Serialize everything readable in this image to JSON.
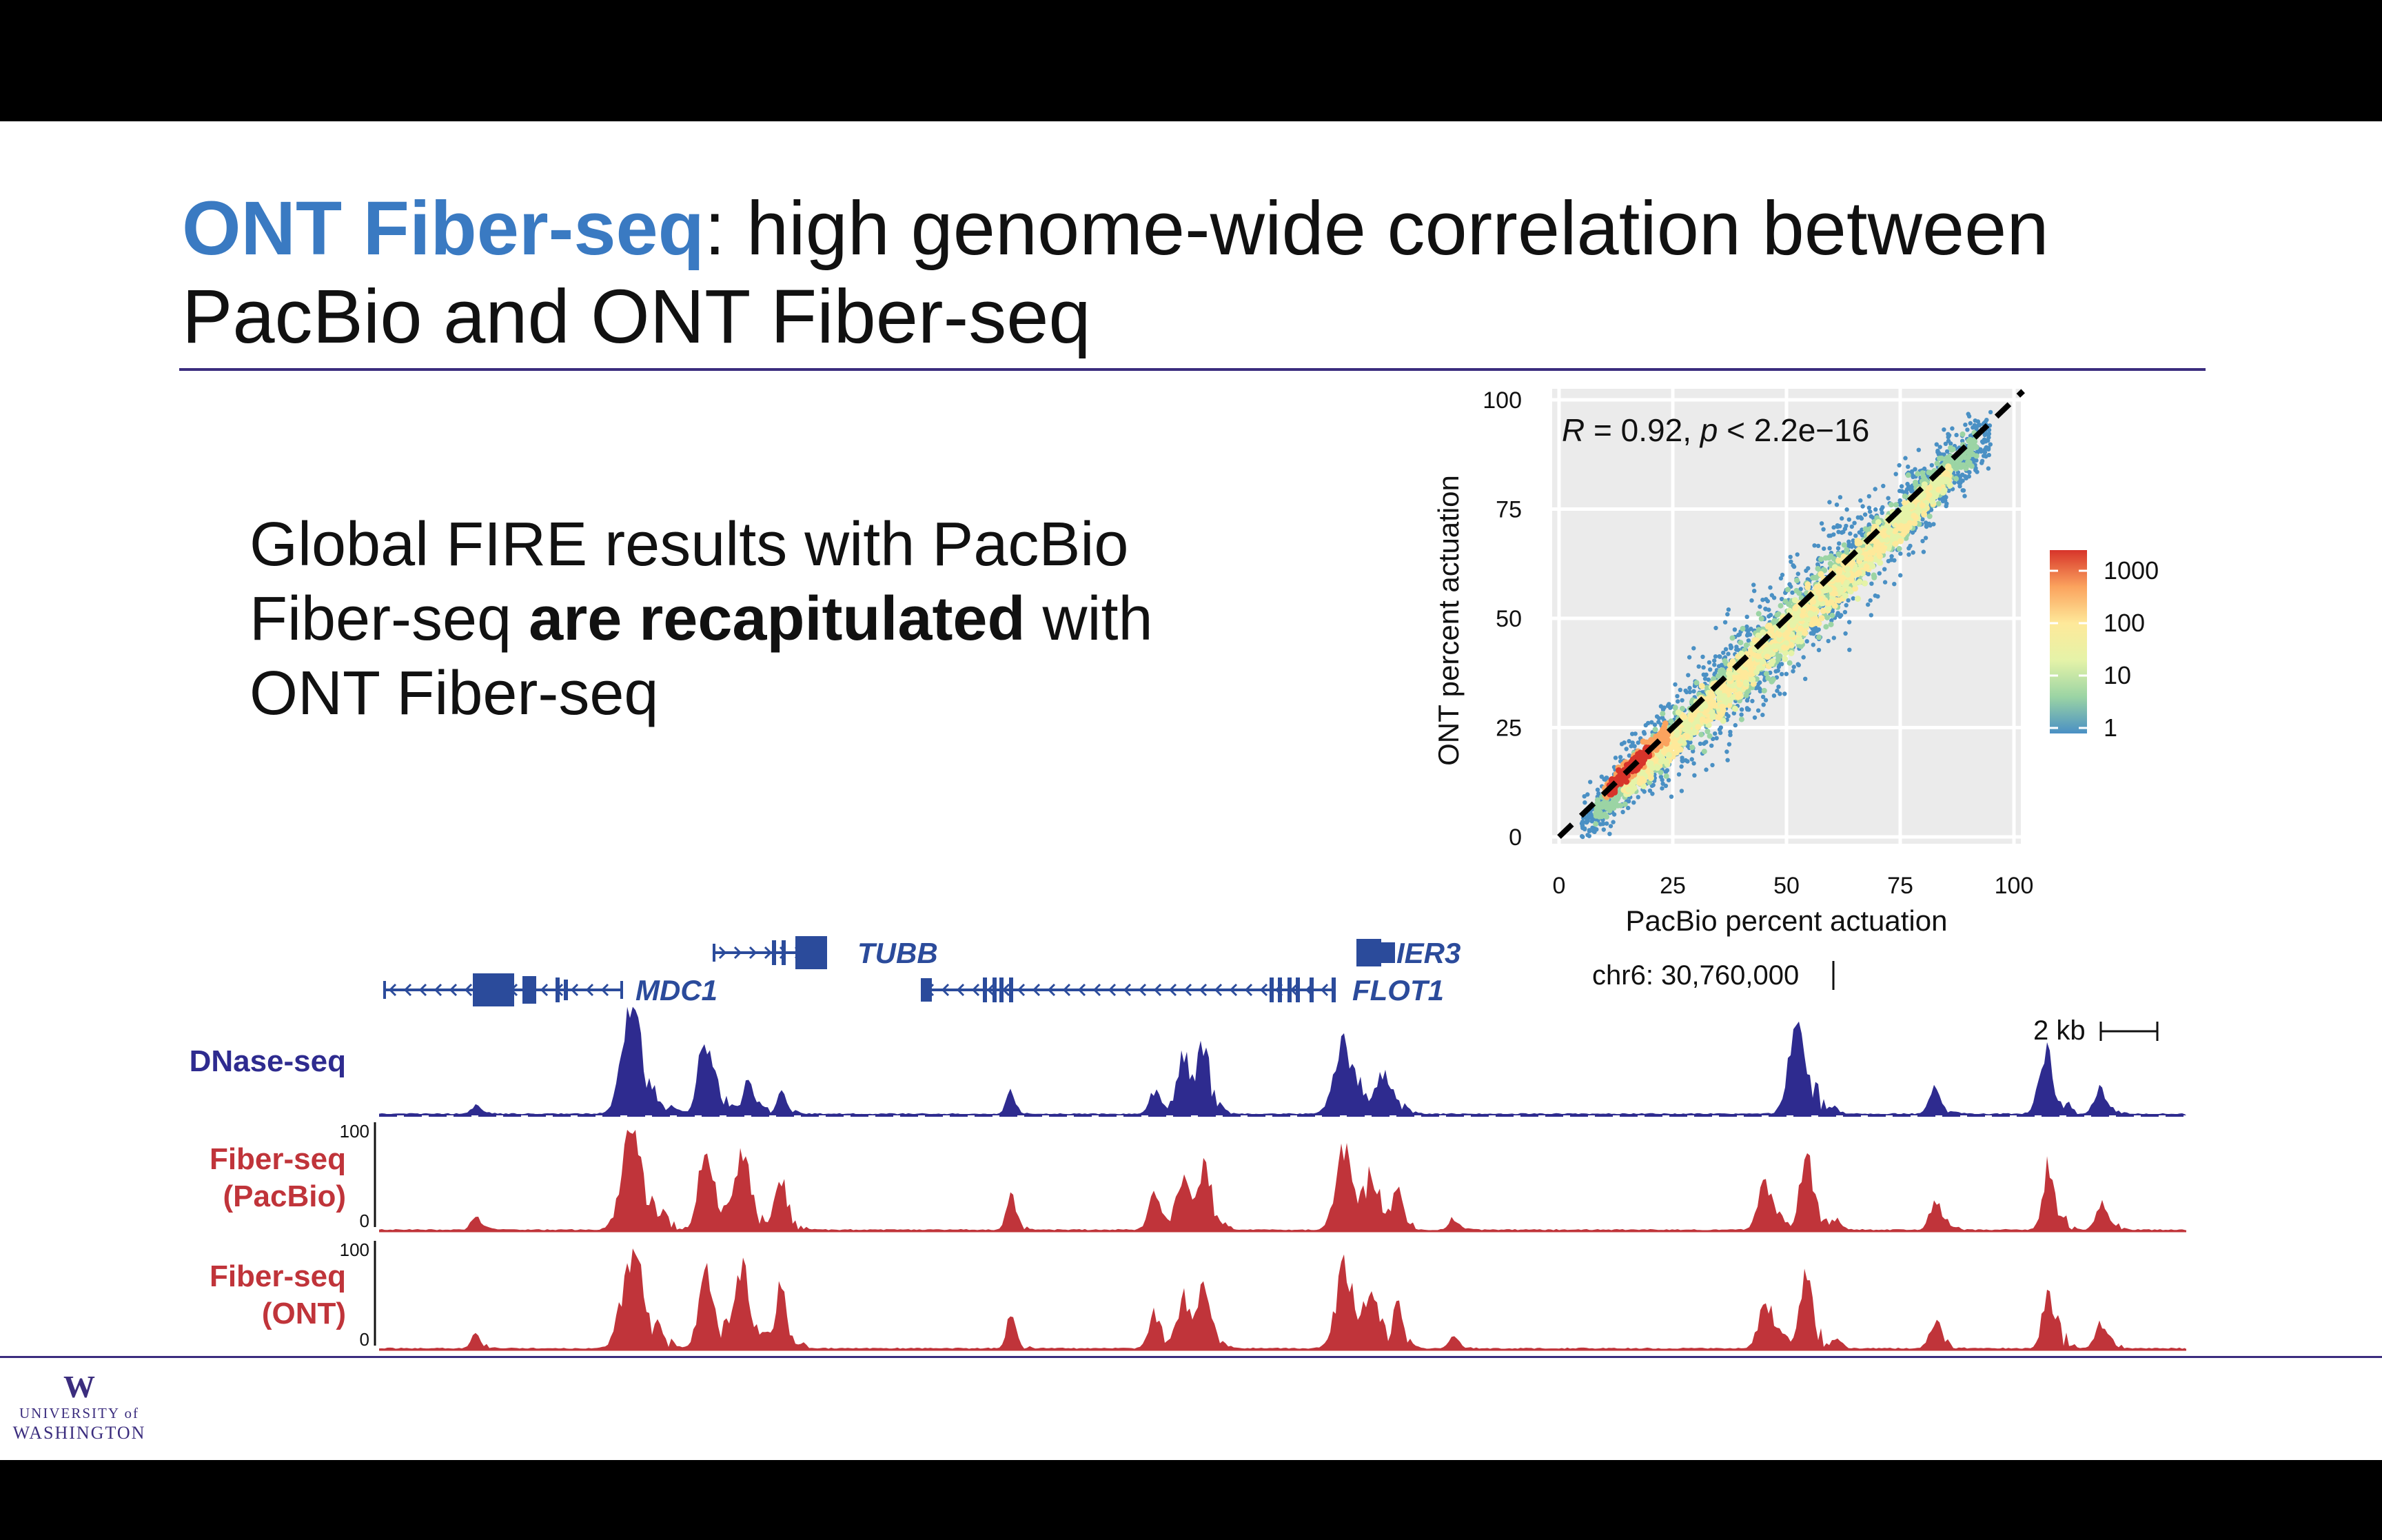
{
  "slide": {
    "title_accent": "ONT Fiber-seq",
    "title_rest": ": high genome-wide correlation between",
    "title_line2": "PacBio and ONT Fiber-seq",
    "body_1": "Global FIRE results with PacBio",
    "body_2a": "Fiber-seq ",
    "body_2b": "are recapitulated",
    "body_2c": " with",
    "body_3": "ONT Fiber-seq"
  },
  "logo": {
    "line1": "UNIVERSITY of",
    "line2": "WASHINGTON"
  },
  "scatter": {
    "stat_R": "R",
    "stat_mid": " = 0.92, ",
    "stat_p": "p",
    "stat_end": " < 2.2e−16",
    "xlabel": "PacBio percent actuation",
    "ylabel": "ONT percent actuation",
    "ticks": [
      "0",
      "25",
      "50",
      "75",
      "100"
    ],
    "colorbar_labels": [
      "1000",
      "100",
      "10",
      "1"
    ],
    "colors": [
      "#d7342a",
      "#fba35e",
      "#fee99a",
      "#e5f3a8",
      "#9bd4a4",
      "#4a90c4"
    ]
  },
  "chart_data": {
    "type": "scatter",
    "title": "",
    "xlabel": "PacBio percent actuation",
    "ylabel": "ONT percent actuation",
    "xlim": [
      0,
      100
    ],
    "ylim": [
      0,
      100
    ],
    "annotation": "R = 0.92, p < 2.2e−16",
    "reference_line": "y = x (dashed)",
    "color_scale": "log count (1, 10, 100, 1000)",
    "grid": true,
    "legend": "right"
  },
  "browser": {
    "genes": [
      {
        "name": "MDC1",
        "strand": "-"
      },
      {
        "name": "TUBB",
        "strand": "+"
      },
      {
        "name": "IER3",
        "strand": "-"
      },
      {
        "name": "FLOT1",
        "strand": "-"
      }
    ],
    "coordinate": "chr6: 30,760,000",
    "scale": "2 kb",
    "tracks": [
      {
        "label": "DNase-seq",
        "color": "#2e2b8f"
      },
      {
        "label": "Fiber-seq",
        "label2": "(PacBio)",
        "color": "#c0343a",
        "ymax": "100",
        "ymin": "0"
      },
      {
        "label": "Fiber-seq",
        "label2": "(ONT)",
        "color": "#c0343a",
        "ymax": "100",
        "ymin": "0"
      }
    ]
  }
}
